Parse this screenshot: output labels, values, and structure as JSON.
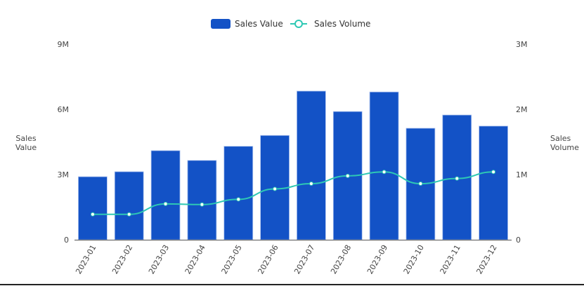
{
  "chart_data": {
    "type": "bar",
    "title": "",
    "categories": [
      "2023-01",
      "2023-02",
      "2023-03",
      "2023-04",
      "2023-05",
      "2023-06",
      "2023-07",
      "2023-08",
      "2023-09",
      "2023-10",
      "2023-11",
      "2023-12"
    ],
    "series": [
      {
        "name": "Sales Value",
        "type": "bar",
        "axis": "left",
        "color": "#1352c6",
        "values": [
          2900000,
          3130000,
          4100000,
          3650000,
          4300000,
          4800000,
          6840000,
          5900000,
          6800000,
          5130000,
          5740000,
          5230000
        ]
      },
      {
        "name": "Sales Volume",
        "type": "line",
        "axis": "right",
        "color": "#2ec8b4",
        "values": [
          390000,
          390000,
          550000,
          540000,
          620000,
          780000,
          860000,
          980000,
          1040000,
          860000,
          940000,
          1040000
        ]
      }
    ],
    "ylabel": "Sales Value",
    "ylabel_right": "Sales Volume",
    "xlabel": "",
    "ylim": [
      0,
      9000000
    ],
    "ylim_right": [
      0,
      3000000
    ],
    "yticks": [
      "0",
      "3M",
      "6M",
      "9M"
    ],
    "yticks_right": [
      "0",
      "1M",
      "2M",
      "3M"
    ],
    "grid": false,
    "legend_position": "top"
  },
  "legend": [
    {
      "label": "Sales Value",
      "icon": "bar-swatch-icon"
    },
    {
      "label": "Sales Volume",
      "icon": "line-marker-icon"
    }
  ],
  "axes": {
    "left_label_line1": "Sales",
    "left_label_line2": "Value",
    "right_label_line1": "Sales",
    "right_label_line2": "Volume"
  }
}
